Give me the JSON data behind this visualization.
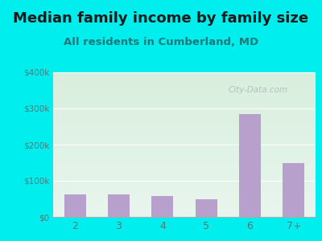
{
  "title": "Median family income by family size",
  "subtitle": "All residents in Cumberland, MD",
  "categories": [
    "2",
    "3",
    "4",
    "5",
    "6",
    "7+"
  ],
  "values": [
    62000,
    63000,
    57000,
    50000,
    285000,
    150000
  ],
  "bar_color": "#b8a0cc",
  "background_outer": "#00eeee",
  "background_inner_top": "#e8f5ee",
  "background_inner_bottom": "#d8eedc",
  "title_color": "#1a1a1a",
  "subtitle_color": "#227777",
  "tick_color": "#557777",
  "ylim": [
    0,
    400000
  ],
  "yticks": [
    0,
    100000,
    200000,
    300000,
    400000
  ],
  "ytick_labels": [
    "$0",
    "$100k",
    "$200k",
    "$300k",
    "$400k"
  ],
  "watermark": "City-Data.com",
  "title_fontsize": 13,
  "subtitle_fontsize": 9.5
}
